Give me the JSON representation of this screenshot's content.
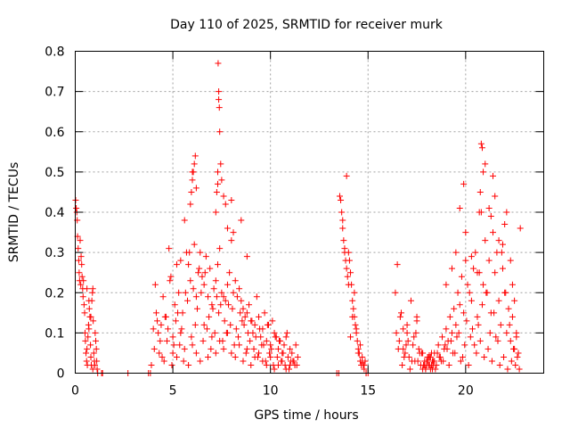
{
  "chart_data": {
    "type": "scatter",
    "title": "Day 110 of 2025, SRMTID for receiver murk",
    "xlabel": "GPS time / hours",
    "ylabel": "SRMTID / TECUs",
    "xlim": [
      0,
      24
    ],
    "ylim": [
      0,
      0.8
    ],
    "x_ticks": [
      0,
      5,
      10,
      15,
      20
    ],
    "y_ticks": [
      0,
      0.1,
      0.2,
      0.3,
      0.4,
      0.5,
      0.6,
      0.7,
      0.8
    ],
    "x_tick_labels": [
      "0",
      "5",
      "10",
      "15",
      "20"
    ],
    "y_tick_labels": [
      "0",
      "0.1",
      "0.2",
      "0.3",
      "0.4",
      "0.5",
      "0.6",
      "0.7",
      "0.8"
    ],
    "grid": true,
    "marker": "+",
    "color": "#ff0000",
    "series": [
      {
        "x": [
          0.02,
          0.05,
          0.08,
          0.1,
          0.12,
          0.15,
          0.18,
          0.2,
          0.22,
          0.25,
          0.28,
          0.3,
          0.33,
          0.35,
          0.38,
          0.4,
          0.42,
          0.45,
          0.48,
          0.5,
          0.52,
          0.55,
          0.58,
          0.6,
          0.62,
          0.65,
          0.68,
          0.7,
          0.72,
          0.75,
          0.78,
          0.8,
          0.82,
          0.85,
          0.88,
          0.9,
          0.92,
          0.95,
          0.98,
          1.0,
          1.02,
          1.05,
          1.08,
          1.1,
          1.12,
          1.15,
          0.6,
          0.7,
          0.8,
          0.9,
          1.0,
          1.35,
          1.4,
          2.7,
          3.75,
          3.85,
          3.9,
          4.0,
          4.1,
          4.2,
          4.3,
          4.4,
          4.5,
          4.6,
          4.7,
          4.8,
          4.9,
          5.0,
          5.1,
          5.2,
          5.3,
          5.4,
          5.5,
          5.6,
          5.7,
          5.8,
          5.9,
          6.0,
          6.1,
          6.2,
          6.3,
          6.4,
          6.5,
          6.6,
          6.7,
          6.8,
          6.9,
          7.0,
          7.1,
          7.2,
          7.3,
          7.4,
          7.5,
          7.6,
          7.7,
          7.8,
          7.9,
          8.0,
          8.1,
          8.2,
          8.3,
          8.4,
          8.5,
          8.6,
          8.7,
          8.8,
          8.9,
          9.0,
          9.1,
          9.2,
          9.3,
          9.4,
          9.5,
          9.6,
          9.7,
          9.8,
          9.9,
          10.0,
          10.1,
          10.2,
          10.3,
          10.4,
          10.5,
          10.6,
          10.7,
          10.8,
          10.9,
          11.0,
          11.1,
          11.2,
          11.3,
          11.4,
          4.05,
          4.25,
          4.45,
          4.65,
          4.85,
          5.05,
          5.25,
          5.45,
          5.65,
          5.85,
          6.05,
          6.25,
          6.45,
          6.65,
          6.85,
          7.05,
          7.25,
          7.45,
          7.65,
          7.85,
          8.05,
          8.25,
          8.45,
          8.65,
          8.85,
          9.05,
          9.25,
          9.45,
          9.65,
          9.85,
          10.05,
          10.25,
          10.45,
          10.65,
          10.85,
          11.05,
          11.25,
          4.15,
          4.35,
          4.55,
          4.75,
          4.95,
          5.15,
          5.35,
          5.55,
          5.75,
          5.95,
          6.15,
          6.35,
          6.55,
          6.75,
          6.95,
          7.15,
          7.35,
          7.55,
          7.75,
          7.95,
          8.15,
          8.35,
          8.55,
          8.75,
          8.95,
          9.15,
          9.35,
          9.55,
          9.75,
          9.95,
          10.15,
          10.35,
          10.55,
          10.75,
          10.95,
          11.15,
          11.35,
          5.0,
          5.2,
          5.4,
          5.6,
          5.8,
          6.0,
          6.2,
          6.4,
          6.6,
          6.8,
          7.0,
          7.2,
          7.4,
          7.6,
          7.8,
          8.0,
          8.2,
          8.4,
          8.6,
          8.8,
          9.0,
          9.2,
          9.4,
          9.6,
          9.8,
          10.0,
          10.2,
          10.4,
          10.6,
          10.8,
          11.0,
          5.9,
          5.95,
          6.0,
          6.05,
          6.1,
          6.15,
          6.2,
          7.2,
          7.25,
          7.3,
          7.3,
          7.32,
          7.35,
          7.35,
          7.38,
          7.4,
          7.45,
          7.5,
          7.6,
          7.7,
          7.8,
          8.0,
          8.1,
          8.5,
          8.8,
          13.55,
          13.6,
          13.65,
          13.7,
          13.75,
          13.8,
          13.85,
          13.9,
          13.95,
          14.0,
          14.05,
          14.1,
          14.15,
          14.2,
          14.25,
          14.3,
          14.35,
          14.4,
          14.45,
          14.5,
          14.55,
          14.6,
          14.65,
          14.7,
          14.75,
          14.8,
          14.85,
          14.9,
          13.7,
          13.8,
          13.9,
          14.0,
          14.1,
          14.2,
          14.3,
          14.4,
          14.5,
          14.6,
          14.7,
          14.8,
          13.4,
          13.5,
          14.9,
          15.0,
          16.4,
          16.5,
          16.6,
          16.7,
          16.8,
          16.9,
          17.0,
          17.1,
          17.2,
          17.3,
          17.4,
          17.5,
          17.6,
          17.7,
          17.8,
          17.9,
          18.0,
          18.1,
          18.2,
          18.3,
          18.4,
          18.5,
          18.6,
          18.7,
          18.8,
          18.9,
          19.0,
          19.1,
          19.2,
          19.3,
          19.4,
          19.5,
          19.6,
          19.7,
          19.8,
          19.9,
          20.0,
          20.1,
          20.2,
          20.3,
          20.4,
          20.5,
          20.6,
          20.7,
          20.8,
          20.9,
          21.0,
          21.1,
          21.2,
          21.3,
          21.4,
          21.5,
          21.6,
          21.7,
          21.8,
          21.9,
          22.0,
          22.1,
          22.2,
          22.3,
          22.4,
          22.5,
          22.6,
          22.7,
          16.45,
          16.65,
          16.85,
          17.05,
          17.25,
          17.45,
          17.65,
          17.85,
          18.05,
          18.25,
          18.45,
          18.65,
          18.85,
          19.05,
          19.25,
          19.45,
          19.65,
          19.85,
          20.05,
          20.25,
          20.45,
          20.65,
          20.85,
          21.05,
          21.25,
          21.45,
          21.65,
          21.85,
          22.05,
          22.25,
          22.45,
          22.65,
          16.55,
          16.75,
          16.95,
          17.15,
          17.35,
          17.55,
          17.75,
          17.95,
          18.15,
          18.35,
          18.55,
          18.75,
          18.95,
          19.15,
          19.35,
          19.55,
          19.75,
          19.95,
          20.15,
          20.35,
          20.55,
          20.75,
          20.95,
          21.15,
          21.35,
          21.55,
          21.75,
          21.95,
          22.15,
          22.35,
          22.55,
          22.75,
          17.8,
          17.9,
          18.0,
          18.1,
          18.2,
          18.3,
          18.4,
          17.85,
          17.95,
          18.05,
          18.15,
          18.25,
          18.35,
          16.8,
          17.0,
          17.5,
          19.0,
          19.3,
          19.5,
          19.7,
          19.9,
          20.0,
          20.3,
          20.6,
          20.7,
          20.75,
          20.8,
          20.85,
          20.9,
          21.0,
          21.2,
          21.3,
          21.4,
          21.5,
          21.7,
          21.9,
          22.0,
          22.1,
          22.3,
          22.4,
          22.5,
          22.6,
          22.7,
          22.8
        ],
        "y": [
          0.43,
          0.41,
          0.4,
          0.38,
          0.34,
          0.31,
          0.28,
          0.25,
          0.23,
          0.33,
          0.22,
          0.29,
          0.27,
          0.24,
          0.21,
          0.19,
          0.23,
          0.17,
          0.15,
          0.1,
          0.08,
          0.05,
          0.03,
          0.06,
          0.02,
          0.09,
          0.12,
          0.11,
          0.16,
          0.14,
          0.07,
          0.04,
          0.02,
          0.18,
          0.2,
          0.21,
          0.13,
          0.05,
          0.03,
          0.02,
          0.1,
          0.08,
          0.06,
          0.03,
          0.01,
          0.0,
          0.21,
          0.18,
          0.14,
          0.01,
          0.02,
          0.0,
          0.0,
          0.0,
          0.0,
          0.0,
          0.02,
          0.11,
          0.22,
          0.13,
          0.05,
          0.12,
          0.19,
          0.14,
          0.08,
          0.31,
          0.24,
          0.09,
          0.17,
          0.27,
          0.2,
          0.28,
          0.15,
          0.38,
          0.3,
          0.27,
          0.23,
          0.5,
          0.32,
          0.19,
          0.25,
          0.3,
          0.24,
          0.22,
          0.29,
          0.19,
          0.26,
          0.17,
          0.21,
          0.23,
          0.27,
          0.31,
          0.2,
          0.19,
          0.18,
          0.22,
          0.25,
          0.43,
          0.2,
          0.23,
          0.19,
          0.21,
          0.18,
          0.16,
          0.14,
          0.15,
          0.17,
          0.13,
          0.1,
          0.12,
          0.19,
          0.14,
          0.09,
          0.11,
          0.15,
          0.08,
          0.12,
          0.07,
          0.13,
          0.1,
          0.09,
          0.06,
          0.08,
          0.05,
          0.07,
          0.09,
          0.04,
          0.06,
          0.05,
          0.03,
          0.07,
          0.04,
          0.06,
          0.1,
          0.04,
          0.14,
          0.23,
          0.07,
          0.15,
          0.11,
          0.2,
          0.3,
          0.21,
          0.16,
          0.2,
          0.25,
          0.14,
          0.16,
          0.19,
          0.17,
          0.13,
          0.17,
          0.16,
          0.11,
          0.15,
          0.12,
          0.1,
          0.13,
          0.09,
          0.11,
          0.07,
          0.12,
          0.06,
          0.09,
          0.08,
          0.05,
          0.1,
          0.03,
          0.02,
          0.15,
          0.08,
          0.03,
          0.11,
          0.02,
          0.13,
          0.07,
          0.03,
          0.18,
          0.09,
          0.12,
          0.26,
          0.08,
          0.11,
          0.06,
          0.1,
          0.15,
          0.08,
          0.1,
          0.12,
          0.07,
          0.09,
          0.13,
          0.05,
          0.08,
          0.06,
          0.04,
          0.07,
          0.03,
          0.05,
          0.02,
          0.04,
          0.03,
          0.02,
          0.01,
          0.03,
          0.02,
          0.05,
          0.04,
          0.1,
          0.06,
          0.02,
          0.07,
          0.05,
          0.03,
          0.12,
          0.04,
          0.09,
          0.05,
          0.08,
          0.06,
          0.1,
          0.05,
          0.04,
          0.07,
          0.03,
          0.06,
          0.02,
          0.04,
          0.05,
          0.03,
          0.02,
          0.04,
          0.01,
          0.02,
          0.03,
          0.01,
          0.02,
          0.42,
          0.45,
          0.48,
          0.5,
          0.52,
          0.54,
          0.46,
          0.4,
          0.45,
          0.5,
          0.47,
          0.77,
          0.7,
          0.68,
          0.66,
          0.6,
          0.52,
          0.48,
          0.44,
          0.42,
          0.36,
          0.33,
          0.35,
          0.38,
          0.29,
          0.44,
          0.43,
          0.4,
          0.36,
          0.33,
          0.3,
          0.28,
          0.26,
          0.24,
          0.3,
          0.28,
          0.25,
          0.22,
          0.18,
          0.16,
          0.14,
          0.12,
          0.1,
          0.08,
          0.06,
          0.05,
          0.03,
          0.02,
          0.04,
          0.02,
          0.01,
          0.03,
          0.0,
          0.38,
          0.31,
          0.49,
          0.22,
          0.09,
          0.14,
          0.2,
          0.11,
          0.05,
          0.07,
          0.03,
          0.02,
          0.0,
          0.0,
          0.0,
          0.0,
          0.2,
          0.27,
          0.08,
          0.15,
          0.11,
          0.05,
          0.12,
          0.04,
          0.18,
          0.07,
          0.03,
          0.13,
          0.06,
          0.02,
          0.05,
          0.03,
          0.02,
          0.04,
          0.01,
          0.03,
          0.05,
          0.02,
          0.07,
          0.04,
          0.09,
          0.06,
          0.11,
          0.08,
          0.14,
          0.1,
          0.16,
          0.12,
          0.2,
          0.17,
          0.24,
          0.15,
          0.28,
          0.22,
          0.2,
          0.18,
          0.26,
          0.3,
          0.14,
          0.25,
          0.4,
          0.22,
          0.33,
          0.2,
          0.28,
          0.15,
          0.35,
          0.25,
          0.3,
          0.18,
          0.12,
          0.26,
          0.2,
          0.1,
          0.16,
          0.08,
          0.14,
          0.06,
          0.1,
          0.05,
          0.1,
          0.14,
          0.04,
          0.08,
          0.03,
          0.1,
          0.05,
          0.02,
          0.03,
          0.02,
          0.01,
          0.04,
          0.03,
          0.06,
          0.08,
          0.05,
          0.1,
          0.04,
          0.13,
          0.09,
          0.07,
          0.12,
          0.17,
          0.2,
          0.1,
          0.15,
          0.08,
          0.3,
          0.2,
          0.12,
          0.06,
          0.04,
          0.06,
          0.02,
          0.07,
          0.01,
          0.09,
          0.03,
          0.05,
          0.01,
          0.04,
          0.02,
          0.05,
          0.03,
          0.07,
          0.02,
          0.05,
          0.09,
          0.03,
          0.07,
          0.02,
          0.11,
          0.05,
          0.08,
          0.04,
          0.06,
          0.03,
          0.09,
          0.02,
          0.04,
          0.01,
          0.03,
          0.02,
          0.01,
          0.01,
          0.02,
          0.03,
          0.02,
          0.04,
          0.01,
          0.03,
          0.02,
          0.01,
          0.04,
          0.02,
          0.05,
          0.03,
          0.06,
          0.1,
          0.14,
          0.22,
          0.26,
          0.3,
          0.41,
          0.47,
          0.35,
          0.29,
          0.25,
          0.4,
          0.45,
          0.57,
          0.56,
          0.5,
          0.52,
          0.41,
          0.39,
          0.49,
          0.44,
          0.33,
          0.32,
          0.37,
          0.4,
          0.28,
          0.22,
          0.18,
          0.09,
          0.05,
          0.36
        ]
      }
    ]
  }
}
